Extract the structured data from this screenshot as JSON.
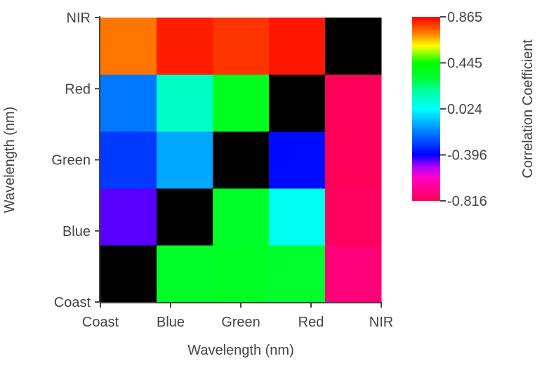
{
  "chart_data": {
    "type": "heatmap",
    "xlabel": "Wavelength (nm)",
    "ylabel": "Wavelength (nm)",
    "x_categories": [
      "Coast",
      "Blue",
      "Green",
      "Red",
      "NIR"
    ],
    "y_categories": [
      "Coast",
      "Blue",
      "Green",
      "Red",
      "NIR"
    ],
    "values": [
      [
        null,
        0.33,
        0.34,
        0.31,
        -0.75
      ],
      [
        -0.45,
        null,
        0.33,
        0.05,
        -0.8
      ],
      [
        -0.3,
        -0.12,
        null,
        -0.38,
        -0.81
      ],
      [
        -0.2,
        0.12,
        0.36,
        null,
        -0.81
      ],
      [
        0.72,
        0.83,
        0.8,
        0.84,
        null
      ]
    ],
    "diagonal_color": "#000000",
    "colorbar": {
      "title": "Correlation Coefficient",
      "min": -0.816,
      "max": 0.865,
      "tick_values": [
        0.865,
        0.445,
        0.024,
        -0.396,
        -0.816
      ],
      "tick_labels": [
        "0.865",
        "0.445",
        "0.024",
        "-0.396",
        "-0.816"
      ],
      "colormap": [
        {
          "value": -0.816,
          "color": "#ff0055"
        },
        {
          "value": -0.6,
          "color": "#ff00cc"
        },
        {
          "value": -0.5,
          "color": "#aa00ff"
        },
        {
          "value": -0.396,
          "color": "#0000ff"
        },
        {
          "value": -0.2,
          "color": "#0077ff"
        },
        {
          "value": 0.024,
          "color": "#00ffff"
        },
        {
          "value": 0.2,
          "color": "#00ff99"
        },
        {
          "value": 0.3,
          "color": "#00ff33"
        },
        {
          "value": 0.445,
          "color": "#00ff00"
        },
        {
          "value": 0.6,
          "color": "#ffff00"
        },
        {
          "value": 0.72,
          "color": "#ff7700"
        },
        {
          "value": 0.865,
          "color": "#ff0000"
        }
      ]
    }
  }
}
